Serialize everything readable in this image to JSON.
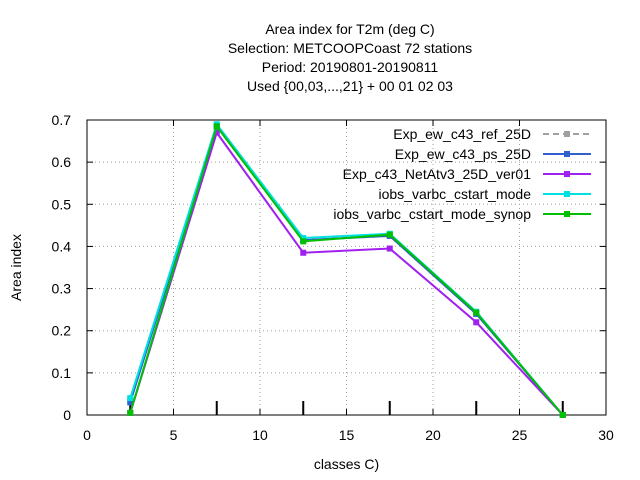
{
  "chart_data": {
    "type": "line",
    "title_lines": [
      "Area index  for T2m (deg C)",
      "Selection: METCOOPCoast     72 stations",
      "Period: 20190801-20190811",
      "Used {00,03,...,21} + 00 01 02 03"
    ],
    "xlabel": "classes C)",
    "ylabel": "Area index",
    "xlim": [
      0,
      30
    ],
    "ylim": [
      0,
      0.7
    ],
    "xticks": [
      0,
      5,
      10,
      15,
      20,
      25,
      30
    ],
    "yticks": [
      0,
      0.1,
      0.2,
      0.3,
      0.4,
      0.5,
      0.6,
      0.7
    ],
    "grid": true,
    "legend_position": "top-right",
    "x": [
      2.5,
      7.5,
      12.5,
      17.5,
      22.5,
      27.5
    ],
    "series": [
      {
        "name": "Exp_ew_c43_ref_25D",
        "color": "#a0a0a0",
        "dashed": true,
        "values": [
          0.035,
          0.685,
          0.415,
          0.425,
          0.24,
          0.0
        ]
      },
      {
        "name": "Exp_ew_c43_ps_25D",
        "color": "#3060d0",
        "dashed": false,
        "values": [
          0.03,
          0.685,
          0.415,
          0.425,
          0.24,
          0.0
        ]
      },
      {
        "name": "Exp_c43_NetAtv3_25D_ver01",
        "color": "#a020f0",
        "dashed": false,
        "values": [
          0.005,
          0.67,
          0.385,
          0.395,
          0.22,
          0.0
        ]
      },
      {
        "name": "iobs_varbc_cstart_mode",
        "color": "#00e0e0",
        "dashed": false,
        "values": [
          0.04,
          0.69,
          0.42,
          0.43,
          0.245,
          0.0
        ]
      },
      {
        "name": "iobs_varbc_cstart_mode_synop",
        "color": "#00c000",
        "dashed": false,
        "values": [
          0.005,
          0.685,
          0.412,
          0.428,
          0.243,
          0.0
        ]
      }
    ]
  }
}
